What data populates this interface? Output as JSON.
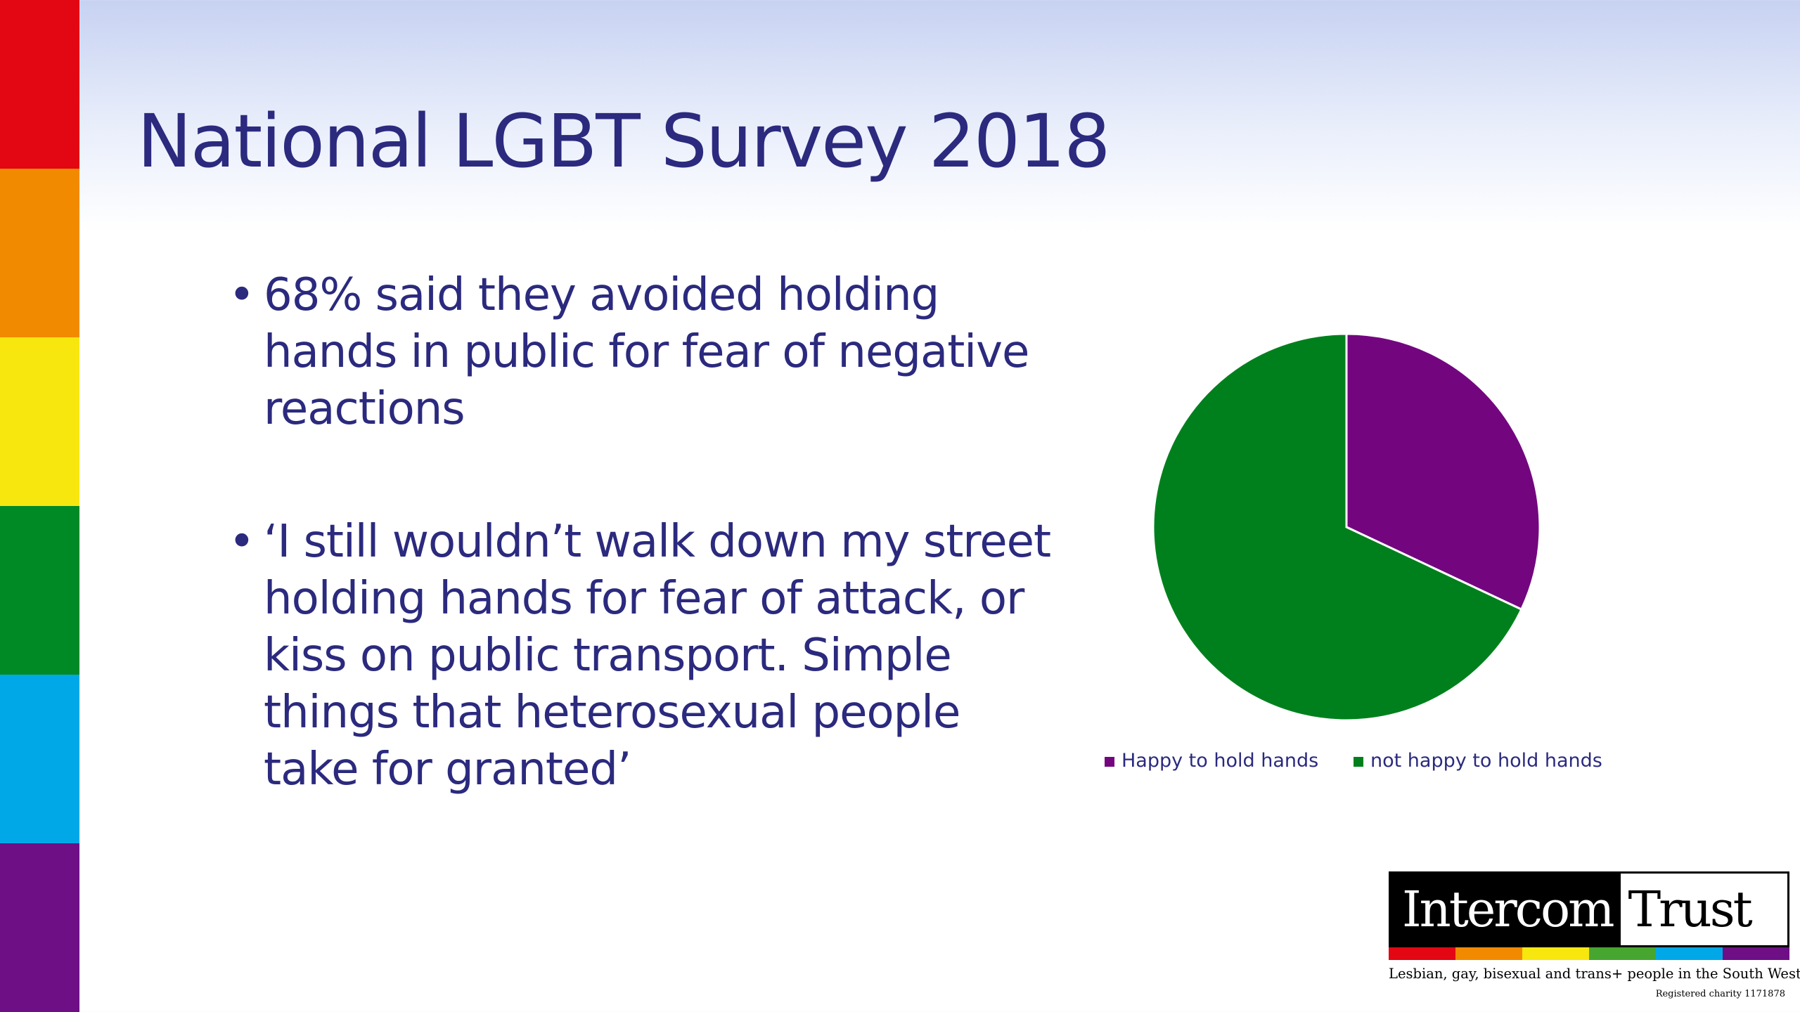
{
  "slide": {
    "title": "National LGBT Survey 2018",
    "bullet_symbol": "•",
    "bullets": [
      "68% said they avoided holding hands in public for fear of negative reactions",
      "‘I still wouldn’t walk down my street holding hands for fear of attack, or kiss on public transport. Simple things that heterosexual people take for granted’"
    ],
    "rainbow_colors": [
      "#e30613",
      "#f28a00",
      "#f7e70f",
      "#008a26",
      "#00a8e8",
      "#6e0f86"
    ]
  },
  "chart_data": {
    "type": "pie",
    "categories": [
      "Happy to hold hands",
      "not happy to hold hands"
    ],
    "values": [
      32,
      68
    ],
    "colors": [
      "#73067f",
      "#00801c"
    ],
    "start_angle_deg": 0,
    "direction": "clockwise",
    "legend_position": "bottom"
  },
  "logo": {
    "word1": "Intercom",
    "word2": "Trust",
    "tagline": "Lesbian, gay, bisexual and trans+ people in the South West",
    "charity": "Registered charity 1171878",
    "stripe_colors": [
      "#e30613",
      "#f28a00",
      "#f7e70f",
      "#46a630",
      "#00a8e8",
      "#6e0f86"
    ]
  }
}
